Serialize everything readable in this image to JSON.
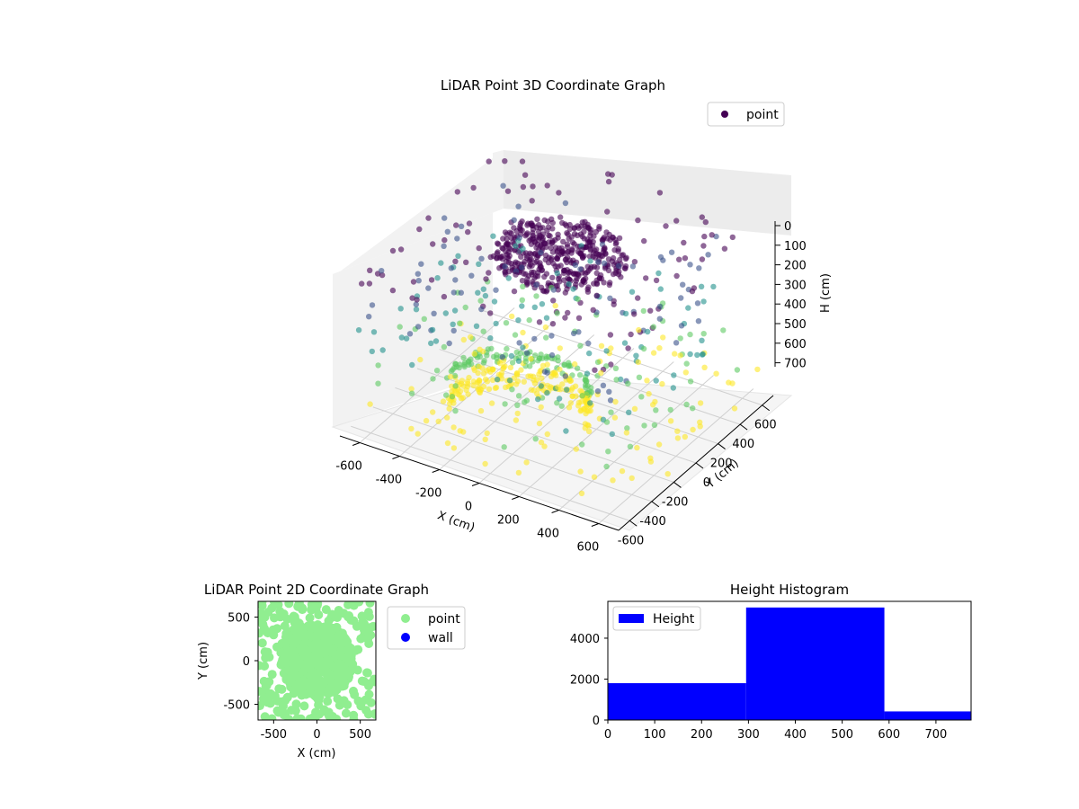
{
  "colors": {
    "scatter2d_point": "#90ee90",
    "scatter2d_wall": "#0000ff",
    "histogram_bar": "#0000ff",
    "cloud_colormap": [
      "#440154",
      "#3b528b",
      "#21918c",
      "#5ec962",
      "#fde725"
    ]
  },
  "chart_data": [
    {
      "type": "scatter3d",
      "title": "LiDAR Point 3D Coordinate Graph",
      "xlabel": "X (cm)",
      "ylabel": "Y (cm)",
      "zlabel": "H (cm)",
      "xlim": [
        -700,
        700
      ],
      "ylim": [
        -700,
        700
      ],
      "zlim": [
        0,
        770
      ],
      "z_inverted": true,
      "x_ticks": [
        "-600",
        "-400",
        "-200",
        "0",
        "200",
        "400",
        "600"
      ],
      "y_ticks": [
        "-600",
        "-400",
        "-200",
        "0",
        "200",
        "400",
        "600"
      ],
      "z_ticks": [
        "0",
        "100",
        "200",
        "300",
        "400",
        "500",
        "600",
        "700"
      ],
      "series": [
        {
          "name": "point",
          "color_by": "height",
          "colormap": "viridis"
        }
      ],
      "legend": {
        "entries": [
          "point"
        ],
        "placement": "top-right"
      },
      "grid": true
    },
    {
      "type": "scatter",
      "title": "LiDAR Point 2D Coordinate Graph",
      "xlabel": "X (cm)",
      "ylabel": "Y (cm)",
      "xlim": [
        -680,
        680
      ],
      "ylim": [
        -680,
        680
      ],
      "x_ticks": [
        "-500",
        "0",
        "500"
      ],
      "y_ticks": [
        "500",
        "0",
        "-500"
      ],
      "series": [
        {
          "name": "point",
          "color": "#90ee90"
        },
        {
          "name": "wall",
          "color": "#0000ff"
        }
      ],
      "legend": {
        "entries": [
          "point",
          "wall"
        ],
        "placement": "outside-right"
      },
      "grid": false
    },
    {
      "type": "bar",
      "title": "Height Histogram",
      "xlabel": "",
      "ylabel": "",
      "bins": [
        {
          "start": 0,
          "end": 295,
          "count": 1800
        },
        {
          "start": 295,
          "end": 590,
          "count": 5500
        },
        {
          "start": 590,
          "end": 775,
          "count": 420
        }
      ],
      "xlim": [
        0,
        775
      ],
      "ylim": [
        0,
        5800
      ],
      "x_ticks": [
        "0",
        "100",
        "200",
        "300",
        "400",
        "500",
        "600",
        "700"
      ],
      "y_ticks": [
        "0",
        "2000",
        "4000"
      ],
      "series": [
        {
          "name": "Height",
          "color": "#0000ff"
        }
      ],
      "legend": {
        "entries": [
          "Height"
        ],
        "placement": "upper-left"
      },
      "grid": false
    }
  ]
}
